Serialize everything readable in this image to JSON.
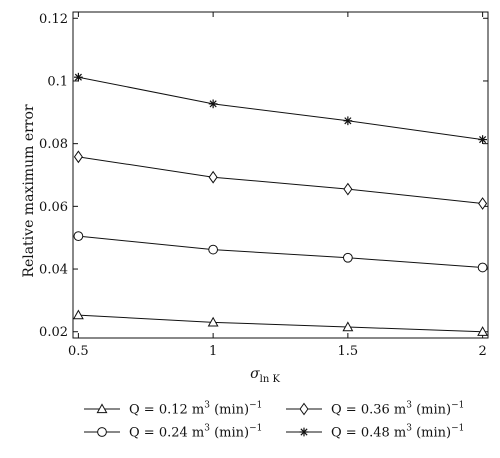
{
  "chart_data": {
    "type": "line",
    "title": "",
    "xlabel": "σ",
    "xlabel_sub": "ln K",
    "ylabel": "Relative maximum error",
    "x": [
      0.5,
      1,
      1.5,
      2
    ],
    "xlim": [
      0.48,
      2.02
    ],
    "ylim": [
      0.018,
      0.122
    ],
    "xticks": [
      "0.5",
      "1",
      "1.5",
      "2"
    ],
    "yticks": [
      "0.02",
      "0.04",
      "0.06",
      "0.08",
      "0.1",
      "0.12"
    ],
    "grid": false,
    "legend_position": "below",
    "series": [
      {
        "name": "Q = 0.12 m³ (min)⁻¹",
        "legend_lhs": "Q = 0.12 m",
        "legend_sup": "3",
        "legend_mid": " (min)",
        "legend_sup2": "−1",
        "marker": "triangle",
        "values": [
          0.0253,
          0.023,
          0.0215,
          0.02
        ]
      },
      {
        "name": "Q = 0.24 m³ (min)⁻¹",
        "legend_lhs": "Q = 0.24 m",
        "legend_sup": "3",
        "legend_mid": " (min)",
        "legend_sup2": "−1",
        "marker": "circle",
        "values": [
          0.0505,
          0.0462,
          0.0436,
          0.0405
        ]
      },
      {
        "name": "Q = 0.36 m³ (min)⁻¹",
        "legend_lhs": "Q = 0.36 m",
        "legend_sup": "3",
        "legend_mid": " (min)",
        "legend_sup2": "−1",
        "marker": "diamond",
        "values": [
          0.0758,
          0.0693,
          0.0655,
          0.0609
        ]
      },
      {
        "name": "Q = 0.48 m³ (min)⁻¹",
        "legend_lhs": "Q = 0.48 m",
        "legend_sup": "3",
        "legend_mid": " (min)",
        "legend_sup2": "−1",
        "marker": "asterisk",
        "values": [
          0.1012,
          0.0927,
          0.0873,
          0.0813
        ]
      }
    ]
  }
}
